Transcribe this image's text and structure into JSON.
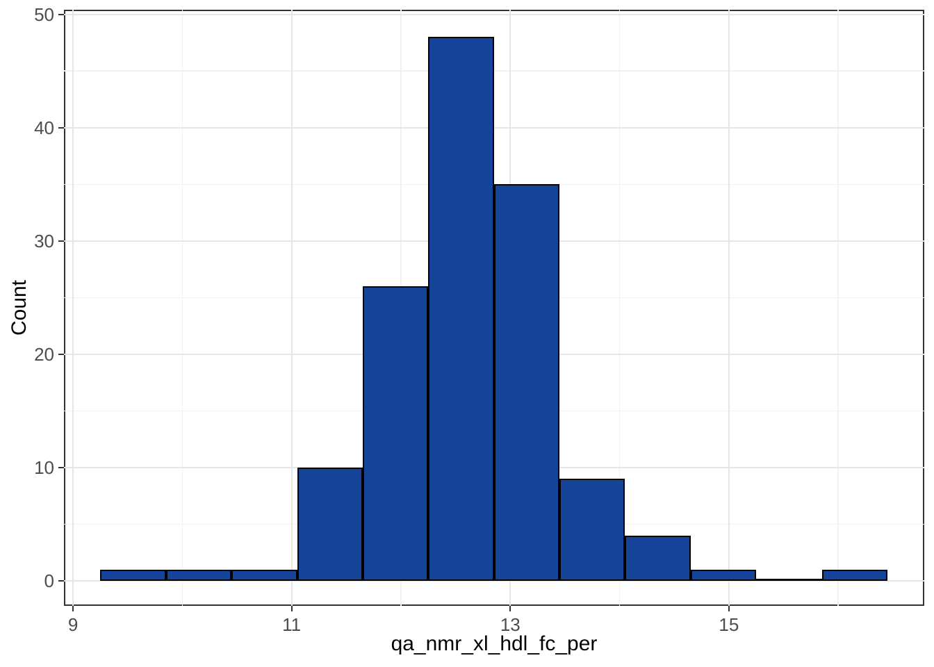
{
  "figure": {
    "background": "#FFFFFF",
    "panel_background": "#FFFFFF",
    "panel_border_color": "#333333",
    "grid_major_color": "#E6E6E6",
    "grid_minor_color": "#F1F1F1",
    "tick_mark_color": "#333333",
    "tick_label_color": "#4D4D4D",
    "axis_title_color": "#000000"
  },
  "chart_data": {
    "type": "bar",
    "subtype": "histogram",
    "title": "",
    "xlabel": "qa_nmr_xl_hdl_fc_per",
    "ylabel": "Count",
    "bar_fill": "#17449B",
    "bar_stroke": "#000000",
    "bin_width": 0.6,
    "bin_edges": [
      9.25,
      9.85,
      10.45,
      11.05,
      11.65,
      12.25,
      12.85,
      13.45,
      14.05,
      14.65,
      15.25,
      15.85,
      16.45
    ],
    "counts": [
      1,
      1,
      1,
      10,
      26,
      48,
      35,
      9,
      4,
      1,
      0,
      1
    ],
    "x_ticks_major": [
      9,
      11,
      13,
      15
    ],
    "x_ticks_minor": [
      10,
      12,
      14,
      16
    ],
    "y_ticks_major": [
      0,
      10,
      20,
      30,
      40,
      50
    ],
    "y_ticks_minor": [
      5,
      15,
      25,
      35,
      45
    ],
    "xlim": [
      8.917,
      16.787
    ],
    "ylim": [
      -2.21,
      50.41
    ],
    "grid": true,
    "legend": false
  }
}
